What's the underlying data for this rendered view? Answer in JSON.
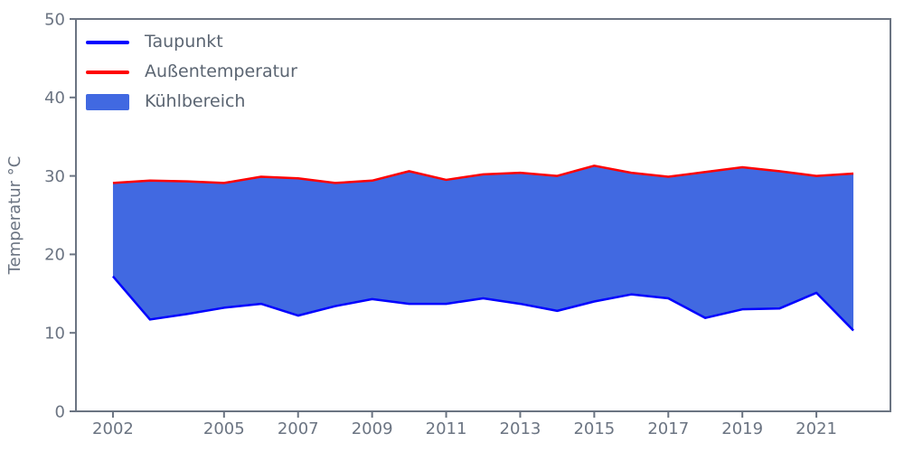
{
  "figure": {
    "background": "#ffffff"
  },
  "style": {
    "axis_color": "#6b7482",
    "tick_label_color": "#6b7482",
    "legend_text_color": "#5b6572"
  },
  "legend": {
    "items": [
      {
        "label": "Taupunkt",
        "swatch": "line",
        "color": "#0000ff"
      },
      {
        "label": "Außentemperatur",
        "swatch": "line",
        "color": "#ff0000"
      },
      {
        "label": "Kühlbereich",
        "swatch": "patch",
        "color": "#4169e1"
      }
    ]
  },
  "chart_data": {
    "type": "area",
    "title": "",
    "xlabel": "",
    "ylabel": "Temperatur °C",
    "x": [
      2002,
      2003,
      2004,
      2005,
      2006,
      2007,
      2008,
      2009,
      2010,
      2011,
      2012,
      2013,
      2014,
      2015,
      2016,
      2017,
      2018,
      2019,
      2020,
      2021,
      2022
    ],
    "series": [
      {
        "name": "Taupunkt",
        "color": "#0000ff",
        "style": "line",
        "values": [
          17.2,
          11.7,
          12.4,
          13.2,
          13.7,
          12.2,
          13.4,
          14.3,
          13.7,
          13.7,
          14.4,
          13.7,
          12.8,
          14.0,
          14.9,
          14.4,
          11.9,
          13.0,
          13.1,
          15.1,
          10.3
        ]
      },
      {
        "name": "Außentemperatur",
        "color": "#ff0000",
        "style": "line",
        "values": [
          29.1,
          29.4,
          29.3,
          29.1,
          29.9,
          29.7,
          29.1,
          29.4,
          30.6,
          29.5,
          30.2,
          30.4,
          30.0,
          31.3,
          30.4,
          29.9,
          30.5,
          31.1,
          30.6,
          30.0,
          30.3
        ]
      }
    ],
    "fill_between": {
      "name": "Kühlbereich",
      "color": "#4169e1",
      "lower": "Taupunkt",
      "upper": "Außentemperatur"
    },
    "xlim": [
      2001,
      2023
    ],
    "ylim": [
      0,
      50
    ],
    "xticks": [
      2002,
      2005,
      2007,
      2009,
      2011,
      2013,
      2015,
      2017,
      2019,
      2021
    ],
    "yticks": [
      0,
      10,
      20,
      30,
      40,
      50
    ],
    "grid": false,
    "legend_position": "upper left"
  }
}
